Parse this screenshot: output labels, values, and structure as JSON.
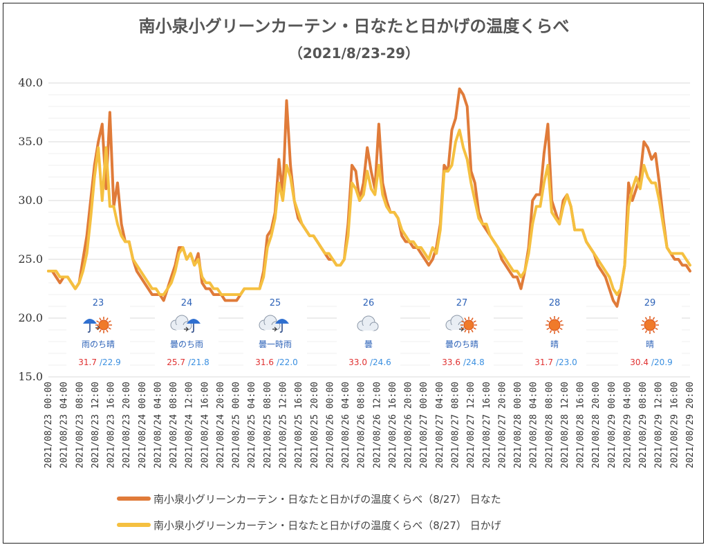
{
  "chart_data": {
    "type": "line",
    "title": "南小泉小グリーンカーテン・日なたと日かげの温度くらべ",
    "subtitle": "（2021/8/23-29）",
    "ylim": [
      15,
      40
    ],
    "yticks": [
      "15.0",
      "20.0",
      "25.0",
      "30.0",
      "35.0",
      "40.0"
    ],
    "grid": "horizontal",
    "legend_position": "bottom",
    "x_tick_labels": [
      "2021/08/23 00:00",
      "2021/08/23 04:00",
      "2021/08/23 08:00",
      "2021/08/23 12:00",
      "2021/08/23 16:00",
      "2021/08/23 20:00",
      "2021/08/24 00:00",
      "2021/08/24 04:00",
      "2021/08/24 08:00",
      "2021/08/24 12:00",
      "2021/08/24 16:00",
      "2021/08/24 20:00",
      "2021/08/25 00:00",
      "2021/08/25 04:00",
      "2021/08/25 08:00",
      "2021/08/25 12:00",
      "2021/08/25 16:00",
      "2021/08/25 20:00",
      "2021/08/26 00:00",
      "2021/08/26 04:00",
      "2021/08/26 08:00",
      "2021/08/26 12:00",
      "2021/08/26 16:00",
      "2021/08/26 20:00",
      "2021/08/27 00:00",
      "2021/08/27 04:00",
      "2021/08/27 08:00",
      "2021/08/27 12:00",
      "2021/08/27 16:00",
      "2021/08/27 20:00",
      "2021/08/28 00:00",
      "2021/08/28 04:00",
      "2021/08/28 08:00",
      "2021/08/28 12:00",
      "2021/08/28 16:00",
      "2021/08/28 20:00",
      "2021/08/29 00:00",
      "2021/08/29 04:00",
      "2021/08/29 08:00",
      "2021/08/29 12:00",
      "2021/08/29 16:00",
      "2021/08/29 20:00"
    ],
    "x_start": "2021/08/23 00:00",
    "x_step_hours": 1,
    "series": [
      {
        "name": "南小泉小グリーンカーテン・日なたと日かげの温度くらべ（8/27） 日なた",
        "color": "#e07b39",
        "values": [
          24.0,
          24.0,
          23.5,
          23.0,
          23.5,
          23.5,
          23.0,
          22.5,
          23.0,
          25.0,
          27.0,
          30.0,
          33.0,
          35.0,
          36.5,
          31.0,
          37.5,
          29.5,
          31.5,
          28.0,
          26.5,
          26.5,
          25.0,
          24.0,
          23.5,
          23.0,
          22.5,
          22.0,
          22.0,
          22.0,
          21.5,
          22.5,
          23.5,
          24.5,
          26.0,
          26.0,
          25.0,
          25.5,
          24.5,
          25.5,
          23.0,
          22.5,
          22.5,
          22.0,
          22.0,
          22.0,
          21.5,
          21.5,
          21.5,
          21.5,
          22.0,
          22.5,
          22.5,
          22.5,
          22.5,
          22.5,
          24.0,
          27.0,
          27.5,
          29.0,
          33.5,
          30.5,
          38.5,
          33.0,
          30.0,
          28.5,
          28.0,
          27.5,
          27.0,
          27.0,
          26.5,
          26.0,
          25.5,
          25.0,
          25.0,
          24.5,
          24.5,
          25.0,
          28.0,
          33.0,
          32.5,
          30.0,
          31.5,
          34.5,
          32.5,
          31.0,
          36.5,
          31.5,
          30.0,
          29.0,
          29.0,
          28.5,
          27.0,
          26.5,
          26.5,
          26.0,
          26.0,
          25.5,
          25.0,
          24.5,
          25.0,
          26.0,
          28.0,
          33.0,
          32.5,
          36.0,
          37.0,
          39.5,
          39.0,
          38.0,
          32.5,
          31.5,
          29.0,
          28.0,
          27.5,
          27.0,
          26.5,
          26.0,
          25.0,
          24.5,
          24.0,
          23.5,
          23.5,
          22.5,
          24.0,
          26.0,
          30.0,
          30.5,
          30.5,
          34.0,
          36.5,
          30.0,
          29.0,
          28.0,
          30.0,
          30.5,
          29.5,
          27.5,
          27.5,
          27.5,
          26.5,
          26.0,
          25.5,
          24.5,
          24.0,
          23.5,
          22.5,
          21.5,
          21.0,
          22.5,
          24.5,
          31.5,
          30.0,
          31.0,
          32.0,
          35.0,
          34.5,
          33.5,
          34.0,
          31.5,
          28.5,
          26.0,
          25.5,
          25.0,
          25.0,
          24.5,
          24.5,
          24.0
        ]
      },
      {
        "name": "南小泉小グリーンカーテン・日なたと日かげの温度くらべ（8/27） 日かげ",
        "color": "#f5c040",
        "values": [
          24.0,
          24.0,
          24.0,
          23.5,
          23.5,
          23.5,
          23.0,
          22.5,
          23.0,
          24.0,
          25.5,
          28.5,
          32.0,
          34.5,
          30.0,
          34.5,
          29.5,
          29.5,
          28.0,
          27.0,
          26.5,
          26.5,
          25.0,
          24.5,
          24.0,
          23.5,
          23.0,
          22.5,
          22.5,
          22.0,
          22.0,
          22.5,
          23.0,
          24.0,
          25.5,
          26.0,
          25.0,
          25.5,
          24.5,
          25.0,
          23.5,
          23.0,
          23.0,
          22.5,
          22.5,
          22.0,
          22.0,
          22.0,
          22.0,
          22.0,
          22.0,
          22.5,
          22.5,
          22.5,
          22.5,
          22.5,
          23.5,
          26.0,
          27.0,
          28.5,
          31.5,
          30.0,
          33.0,
          32.0,
          30.0,
          29.0,
          28.0,
          27.5,
          27.0,
          27.0,
          26.5,
          26.0,
          25.5,
          25.5,
          25.0,
          24.5,
          24.5,
          25.0,
          27.0,
          31.5,
          31.0,
          30.0,
          30.5,
          32.5,
          31.0,
          30.5,
          33.0,
          30.5,
          29.5,
          29.0,
          29.0,
          28.5,
          27.5,
          27.0,
          26.5,
          26.5,
          26.0,
          26.0,
          25.5,
          25.0,
          26.0,
          25.5,
          27.5,
          32.5,
          32.5,
          33.0,
          35.0,
          36.0,
          34.5,
          33.5,
          31.5,
          30.0,
          28.5,
          28.0,
          28.0,
          27.0,
          26.5,
          26.0,
          25.5,
          25.0,
          24.5,
          24.0,
          24.0,
          23.5,
          24.0,
          25.5,
          28.0,
          29.5,
          29.5,
          31.5,
          33.0,
          29.0,
          28.5,
          28.0,
          29.5,
          30.5,
          29.5,
          27.5,
          27.5,
          27.5,
          26.5,
          26.0,
          25.5,
          25.0,
          24.5,
          24.0,
          23.5,
          22.5,
          22.0,
          22.5,
          24.5,
          29.5,
          31.0,
          32.0,
          31.0,
          33.0,
          32.0,
          31.5,
          31.5,
          30.0,
          28.0,
          26.0,
          25.5,
          25.5,
          25.5,
          25.5,
          25.0,
          24.5
        ]
      }
    ]
  },
  "weather": [
    {
      "day": "23",
      "label": "雨のち晴",
      "icon": "umbrella-sun-icon",
      "max": "31.7",
      "min": "/22.9"
    },
    {
      "day": "24",
      "label": "曇のち雨",
      "icon": "cloud-umbrella-icon",
      "max": "25.7",
      "min": "/21.8"
    },
    {
      "day": "25",
      "label": "曇一時雨",
      "icon": "cloud-umbrella-icon",
      "max": "31.6",
      "min": "/22.0"
    },
    {
      "day": "26",
      "label": "曇",
      "icon": "cloud-icon",
      "max": "33.0",
      "min": "/24.6"
    },
    {
      "day": "27",
      "label": "曇のち晴",
      "icon": "cloud-sun-icon",
      "max": "33.6",
      "min": "/24.8"
    },
    {
      "day": "28",
      "label": "晴",
      "icon": "sun-icon",
      "max": "31.7",
      "min": "/23.0"
    },
    {
      "day": "29",
      "label": "晴",
      "icon": "sun-icon",
      "max": "30.4",
      "min": "/20.9"
    }
  ],
  "legend": [
    {
      "label": "南小泉小グリーンカーテン・日なたと日かげの温度くらべ（8/27） 日なた",
      "color": "#e07b39"
    },
    {
      "label": "南小泉小グリーンカーテン・日なたと日かげの温度くらべ（8/27） 日かげ",
      "color": "#f5c040"
    }
  ]
}
